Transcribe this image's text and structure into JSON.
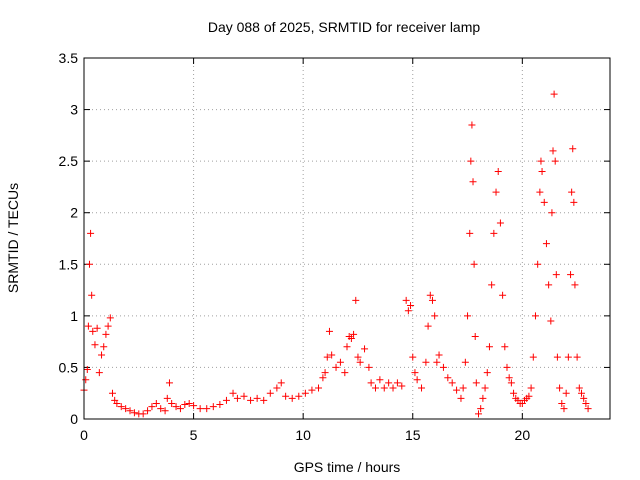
{
  "chart_data": {
    "type": "scatter",
    "title": "Day 088 of 2025, SRMTID for receiver lamp",
    "xlabel": "GPS time / hours",
    "ylabel": "SRMTID / TECUs",
    "xlim": [
      0,
      24
    ],
    "ylim": [
      0,
      3.5
    ],
    "x_ticks": [
      0,
      5,
      10,
      15,
      20
    ],
    "x_tick_labels": [
      "0",
      "5",
      "10",
      "15",
      "20"
    ],
    "y_ticks": [
      0,
      0.5,
      1,
      1.5,
      2,
      2.5,
      3,
      3.5
    ],
    "y_tick_labels": [
      "0",
      "0.5",
      "1",
      "1.5",
      "2",
      "2.5",
      "3",
      "3.5"
    ],
    "grid": true,
    "marker": "+",
    "series": [
      {
        "name": "SRMTID",
        "color": "#ff0000",
        "points": [
          [
            0.0,
            0.28
          ],
          [
            0.08,
            0.38
          ],
          [
            0.15,
            0.48
          ],
          [
            0.2,
            0.9
          ],
          [
            0.25,
            1.5
          ],
          [
            0.3,
            1.8
          ],
          [
            0.35,
            1.2
          ],
          [
            0.4,
            0.85
          ],
          [
            0.5,
            0.72
          ],
          [
            0.6,
            0.88
          ],
          [
            0.7,
            0.45
          ],
          [
            0.8,
            0.62
          ],
          [
            0.9,
            0.7
          ],
          [
            1.0,
            0.82
          ],
          [
            1.1,
            0.9
          ],
          [
            1.2,
            0.98
          ],
          [
            1.3,
            0.25
          ],
          [
            1.4,
            0.18
          ],
          [
            1.5,
            0.15
          ],
          [
            1.7,
            0.12
          ],
          [
            1.9,
            0.1
          ],
          [
            2.1,
            0.08
          ],
          [
            2.3,
            0.06
          ],
          [
            2.5,
            0.05
          ],
          [
            2.7,
            0.05
          ],
          [
            2.9,
            0.08
          ],
          [
            3.1,
            0.12
          ],
          [
            3.3,
            0.15
          ],
          [
            3.5,
            0.1
          ],
          [
            3.7,
            0.08
          ],
          [
            3.8,
            0.2
          ],
          [
            3.9,
            0.35
          ],
          [
            4.0,
            0.15
          ],
          [
            4.2,
            0.12
          ],
          [
            4.4,
            0.1
          ],
          [
            4.6,
            0.14
          ],
          [
            4.8,
            0.15
          ],
          [
            5.0,
            0.13
          ],
          [
            5.3,
            0.1
          ],
          [
            5.6,
            0.1
          ],
          [
            5.9,
            0.12
          ],
          [
            6.2,
            0.14
          ],
          [
            6.5,
            0.18
          ],
          [
            6.8,
            0.25
          ],
          [
            7.0,
            0.2
          ],
          [
            7.3,
            0.22
          ],
          [
            7.6,
            0.18
          ],
          [
            7.9,
            0.2
          ],
          [
            8.2,
            0.18
          ],
          [
            8.5,
            0.25
          ],
          [
            8.8,
            0.3
          ],
          [
            9.0,
            0.35
          ],
          [
            9.2,
            0.22
          ],
          [
            9.5,
            0.2
          ],
          [
            9.8,
            0.22
          ],
          [
            10.1,
            0.25
          ],
          [
            10.4,
            0.28
          ],
          [
            10.7,
            0.3
          ],
          [
            10.9,
            0.4
          ],
          [
            11.0,
            0.45
          ],
          [
            11.1,
            0.6
          ],
          [
            11.2,
            0.85
          ],
          [
            11.3,
            0.62
          ],
          [
            11.5,
            0.5
          ],
          [
            11.7,
            0.55
          ],
          [
            11.9,
            0.45
          ],
          [
            12.0,
            0.7
          ],
          [
            12.1,
            0.8
          ],
          [
            12.2,
            0.78
          ],
          [
            12.3,
            0.82
          ],
          [
            12.4,
            1.15
          ],
          [
            12.5,
            0.6
          ],
          [
            12.6,
            0.55
          ],
          [
            12.8,
            0.68
          ],
          [
            13.0,
            0.5
          ],
          [
            13.1,
            0.35
          ],
          [
            13.3,
            0.3
          ],
          [
            13.5,
            0.38
          ],
          [
            13.7,
            0.3
          ],
          [
            13.9,
            0.35
          ],
          [
            14.1,
            0.3
          ],
          [
            14.3,
            0.35
          ],
          [
            14.5,
            0.32
          ],
          [
            14.7,
            1.15
          ],
          [
            14.8,
            1.05
          ],
          [
            14.9,
            1.1
          ],
          [
            15.0,
            0.6
          ],
          [
            15.1,
            0.45
          ],
          [
            15.2,
            0.38
          ],
          [
            15.4,
            0.3
          ],
          [
            15.6,
            0.55
          ],
          [
            15.7,
            0.9
          ],
          [
            15.8,
            1.2
          ],
          [
            15.9,
            1.15
          ],
          [
            16.0,
            1.0
          ],
          [
            16.1,
            0.55
          ],
          [
            16.2,
            0.62
          ],
          [
            16.4,
            0.5
          ],
          [
            16.6,
            0.4
          ],
          [
            16.8,
            0.35
          ],
          [
            17.0,
            0.28
          ],
          [
            17.2,
            0.2
          ],
          [
            17.3,
            0.3
          ],
          [
            17.4,
            0.55
          ],
          [
            17.5,
            1.0
          ],
          [
            17.6,
            1.8
          ],
          [
            17.65,
            2.5
          ],
          [
            17.7,
            2.85
          ],
          [
            17.75,
            2.3
          ],
          [
            17.8,
            1.5
          ],
          [
            17.85,
            0.8
          ],
          [
            17.9,
            0.35
          ],
          [
            18.0,
            0.05
          ],
          [
            18.1,
            0.1
          ],
          [
            18.2,
            0.2
          ],
          [
            18.3,
            0.3
          ],
          [
            18.4,
            0.45
          ],
          [
            18.5,
            0.7
          ],
          [
            18.6,
            1.3
          ],
          [
            18.7,
            1.8
          ],
          [
            18.8,
            2.2
          ],
          [
            18.9,
            2.4
          ],
          [
            19.0,
            1.9
          ],
          [
            19.1,
            1.2
          ],
          [
            19.2,
            0.7
          ],
          [
            19.3,
            0.5
          ],
          [
            19.4,
            0.4
          ],
          [
            19.5,
            0.35
          ],
          [
            19.6,
            0.25
          ],
          [
            19.7,
            0.2
          ],
          [
            19.8,
            0.18
          ],
          [
            19.9,
            0.15
          ],
          [
            20.0,
            0.15
          ],
          [
            20.1,
            0.18
          ],
          [
            20.2,
            0.2
          ],
          [
            20.3,
            0.22
          ],
          [
            20.4,
            0.3
          ],
          [
            20.5,
            0.6
          ],
          [
            20.6,
            1.0
          ],
          [
            20.7,
            1.5
          ],
          [
            20.8,
            2.2
          ],
          [
            20.85,
            2.5
          ],
          [
            20.9,
            2.4
          ],
          [
            21.0,
            2.1
          ],
          [
            21.1,
            1.7
          ],
          [
            21.2,
            1.3
          ],
          [
            21.3,
            0.95
          ],
          [
            21.35,
            2.0
          ],
          [
            21.4,
            2.6
          ],
          [
            21.45,
            3.15
          ],
          [
            21.5,
            2.5
          ],
          [
            21.55,
            1.4
          ],
          [
            21.6,
            0.6
          ],
          [
            21.7,
            0.3
          ],
          [
            21.8,
            0.15
          ],
          [
            21.9,
            0.1
          ],
          [
            22.0,
            0.25
          ],
          [
            22.1,
            0.6
          ],
          [
            22.2,
            1.4
          ],
          [
            22.25,
            2.2
          ],
          [
            22.3,
            2.62
          ],
          [
            22.35,
            2.1
          ],
          [
            22.4,
            1.3
          ],
          [
            22.5,
            0.6
          ],
          [
            22.6,
            0.3
          ],
          [
            22.7,
            0.25
          ],
          [
            22.8,
            0.2
          ],
          [
            22.9,
            0.15
          ],
          [
            23.0,
            0.1
          ]
        ]
      }
    ]
  }
}
